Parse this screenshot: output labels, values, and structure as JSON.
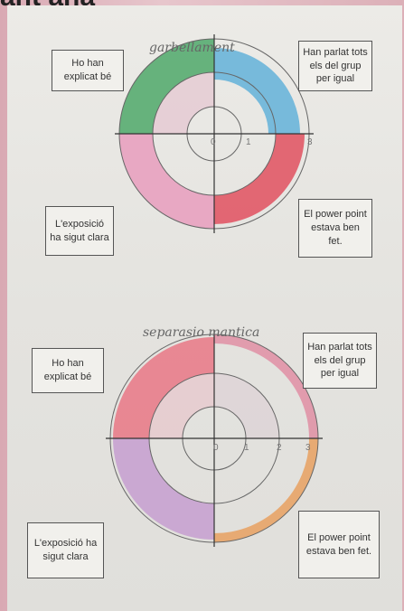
{
  "header": "ant ana",
  "diagrams": [
    {
      "title": "garbellament",
      "labels": [
        "Ho han explicat bé",
        "Han parlat tots els del grup per igual",
        "L'exposició ha sigut clara",
        "El power point estava ben fet."
      ],
      "scale": [
        "0",
        "1",
        "3"
      ]
    },
    {
      "title": "separasio mantica",
      "labels": [
        "Ho han explicat bé",
        "Han parlat tots els del grup per igual",
        "L'exposició ha sigut clara",
        "El power point estava ben fet."
      ],
      "scale": [
        "0",
        "1",
        "2",
        "3"
      ]
    }
  ]
}
